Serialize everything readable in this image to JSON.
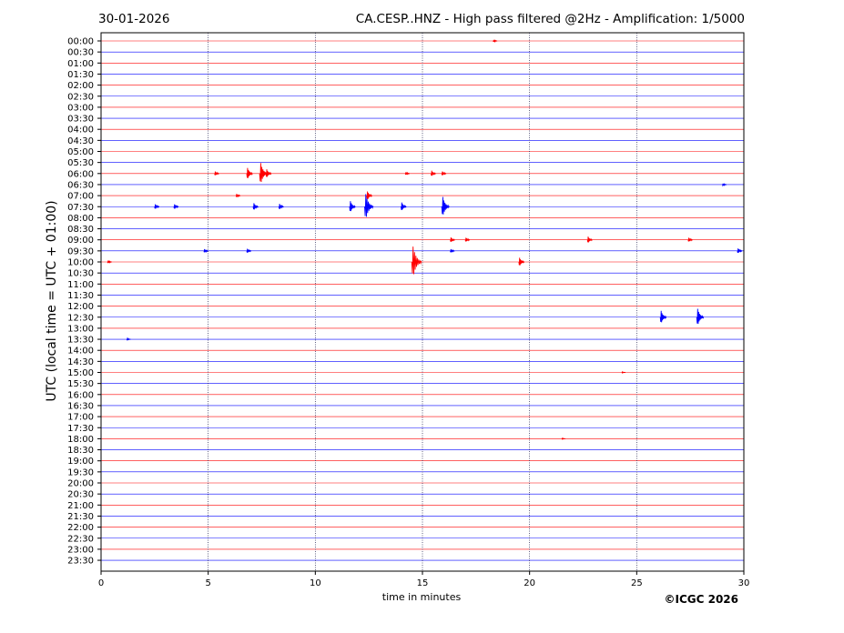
{
  "header": {
    "date": "30-01-2026",
    "title": "CA.CESP..HNZ - High pass filtered @2Hz - Amplification: 1/5000"
  },
  "footer": {
    "copyright": "©ICGC 2026"
  },
  "chart_data": {
    "type": "line",
    "title": "CA.CESP..HNZ - High pass filtered @2Hz - Amplification: 1/5000",
    "xlabel": "time in minutes",
    "ylabel": "UTC (local time = UTC + 01:00)",
    "xlim": [
      0,
      30
    ],
    "x_ticks": [
      0,
      5,
      10,
      15,
      20,
      25,
      30
    ],
    "grid": "vertical dotted at each x tick",
    "row_labels": [
      "00:00",
      "00:30",
      "01:00",
      "01:30",
      "02:00",
      "02:30",
      "03:00",
      "03:30",
      "04:00",
      "04:30",
      "05:00",
      "05:30",
      "06:00",
      "06:30",
      "07:00",
      "07:30",
      "08:00",
      "08:30",
      "09:00",
      "09:30",
      "10:00",
      "10:30",
      "11:00",
      "11:30",
      "12:00",
      "12:30",
      "13:00",
      "13:30",
      "14:00",
      "14:30",
      "15:00",
      "15:30",
      "16:00",
      "16:30",
      "17:00",
      "17:30",
      "18:00",
      "18:30",
      "19:00",
      "19:30",
      "20:00",
      "20:30",
      "21:00",
      "21:30",
      "22:00",
      "22:30",
      "23:00",
      "23:30"
    ],
    "trace_colors": [
      "#ff0000",
      "#0000ff"
    ],
    "events": [
      {
        "row": "00:00",
        "minute": 18.3,
        "amplitude": 0.15
      },
      {
        "row": "06:00",
        "minute": 5.3,
        "amplitude": 0.3
      },
      {
        "row": "06:00",
        "minute": 6.8,
        "amplitude": 0.8
      },
      {
        "row": "06:00",
        "minute": 7.4,
        "amplitude": 1.5
      },
      {
        "row": "06:00",
        "minute": 7.7,
        "amplitude": 0.6
      },
      {
        "row": "06:00",
        "minute": 14.2,
        "amplitude": 0.2
      },
      {
        "row": "06:00",
        "minute": 15.4,
        "amplitude": 0.4
      },
      {
        "row": "06:00",
        "minute": 15.9,
        "amplitude": 0.3
      },
      {
        "row": "06:30",
        "minute": 29.0,
        "amplitude": 0.15
      },
      {
        "row": "07:00",
        "minute": 6.3,
        "amplitude": 0.25
      },
      {
        "row": "07:00",
        "minute": 12.4,
        "amplitude": 0.6
      },
      {
        "row": "07:30",
        "minute": 2.5,
        "amplitude": 0.35
      },
      {
        "row": "07:30",
        "minute": 3.4,
        "amplitude": 0.35
      },
      {
        "row": "07:30",
        "minute": 7.1,
        "amplitude": 0.5
      },
      {
        "row": "07:30",
        "minute": 8.3,
        "amplitude": 0.4
      },
      {
        "row": "07:30",
        "minute": 11.6,
        "amplitude": 0.8
      },
      {
        "row": "07:30",
        "minute": 12.3,
        "amplitude": 1.8
      },
      {
        "row": "07:30",
        "minute": 14.0,
        "amplitude": 0.6
      },
      {
        "row": "07:30",
        "minute": 15.9,
        "amplitude": 1.4
      },
      {
        "row": "09:00",
        "minute": 16.3,
        "amplitude": 0.35
      },
      {
        "row": "09:00",
        "minute": 17.0,
        "amplitude": 0.3
      },
      {
        "row": "09:00",
        "minute": 22.7,
        "amplitude": 0.45
      },
      {
        "row": "09:00",
        "minute": 27.4,
        "amplitude": 0.3
      },
      {
        "row": "09:30",
        "minute": 4.8,
        "amplitude": 0.25
      },
      {
        "row": "09:30",
        "minute": 6.8,
        "amplitude": 0.3
      },
      {
        "row": "09:30",
        "minute": 16.3,
        "amplitude": 0.25
      },
      {
        "row": "09:30",
        "minute": 29.7,
        "amplitude": 0.35
      },
      {
        "row": "10:00",
        "minute": 0.3,
        "amplitude": 0.2
      },
      {
        "row": "10:00",
        "minute": 14.5,
        "amplitude": 2.2
      },
      {
        "row": "10:00",
        "minute": 19.5,
        "amplitude": 0.6
      },
      {
        "row": "12:30",
        "minute": 26.1,
        "amplitude": 0.9
      },
      {
        "row": "12:30",
        "minute": 27.8,
        "amplitude": 1.2
      },
      {
        "row": "13:30",
        "minute": 1.2,
        "amplitude": 0.1
      },
      {
        "row": "15:00",
        "minute": 24.3,
        "amplitude": 0.05
      },
      {
        "row": "18:00",
        "minute": 21.5,
        "amplitude": 0.05
      }
    ]
  }
}
